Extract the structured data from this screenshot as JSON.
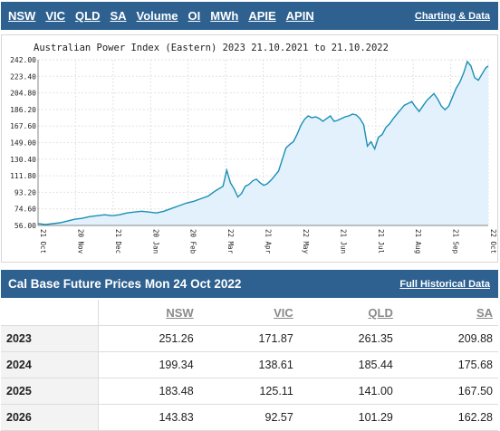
{
  "top_nav": {
    "links": [
      "NSW",
      "VIC",
      "QLD",
      "SA",
      "Volume",
      "OI",
      "MWh",
      "APIE",
      "APIN"
    ],
    "charting_link": "Charting & Data"
  },
  "chart_data": {
    "type": "area",
    "title": "Australian Power Index (Eastern) 2023 21.10.2021 to 21.10.2022",
    "y_ticks": [
      "242.00",
      "223.40",
      "204.80",
      "186.20",
      "167.60",
      "149.00",
      "130.40",
      "111.80",
      "93.20",
      "74.60",
      "56.00"
    ],
    "ylim": [
      56.0,
      242.0
    ],
    "x_ticks": [
      "21 Oct",
      "20 Nov",
      "21 Dec",
      "20 Jan",
      "20 Feb",
      "22 Mar",
      "21 Apr",
      "22 May",
      "21 Jun",
      "21 Jul",
      "21 Aug",
      "21 Sep",
      "22 Oct"
    ],
    "xlim": [
      0,
      365
    ],
    "x": [
      0,
      6,
      12,
      18,
      24,
      30,
      36,
      42,
      48,
      54,
      60,
      66,
      72,
      78,
      84,
      90,
      96,
      102,
      108,
      114,
      120,
      126,
      132,
      138,
      144,
      150,
      153,
      156,
      159,
      162,
      165,
      168,
      171,
      174,
      177,
      180,
      183,
      186,
      189,
      192,
      195,
      198,
      201,
      204,
      207,
      210,
      213,
      216,
      219,
      222,
      225,
      228,
      231,
      234,
      237,
      240,
      243,
      246,
      249,
      252,
      255,
      258,
      261,
      264,
      267,
      270,
      273,
      276,
      279,
      282,
      285,
      288,
      291,
      294,
      297,
      300,
      303,
      306,
      309,
      312,
      315,
      318,
      321,
      324,
      327,
      330,
      333,
      336,
      339,
      342,
      345,
      348,
      351,
      354,
      357,
      360,
      363,
      365
    ],
    "values": [
      58,
      57,
      58,
      59,
      61,
      63,
      64,
      66,
      67,
      68,
      67,
      68,
      70,
      71,
      72,
      71,
      70,
      72,
      75,
      78,
      81,
      83,
      86,
      89,
      95,
      100,
      118,
      104,
      97,
      88,
      92,
      100,
      102,
      106,
      108,
      104,
      101,
      103,
      107,
      112,
      117,
      130,
      143,
      147,
      150,
      158,
      168,
      175,
      179,
      177,
      178,
      176,
      173,
      176,
      179,
      173,
      174,
      176,
      178,
      179,
      181,
      180,
      176,
      169,
      145,
      150,
      142,
      155,
      158,
      166,
      170,
      176,
      181,
      186,
      191,
      193,
      195,
      189,
      184,
      190,
      196,
      200,
      204,
      198,
      190,
      186,
      190,
      200,
      210,
      217,
      227,
      240,
      235,
      222,
      219,
      226,
      233,
      235
    ]
  },
  "prices": {
    "title": "Cal Base Future Prices Mon 24 Oct 2022",
    "history_link": "Full Historical Data",
    "columns": [
      "NSW",
      "VIC",
      "QLD",
      "SA"
    ],
    "rows": [
      {
        "year": "2023",
        "values": [
          "251.26",
          "171.87",
          "261.35",
          "209.88"
        ]
      },
      {
        "year": "2024",
        "values": [
          "199.34",
          "138.61",
          "185.44",
          "175.68"
        ]
      },
      {
        "year": "2025",
        "values": [
          "183.48",
          "125.11",
          "141.00",
          "167.50"
        ]
      },
      {
        "year": "2026",
        "values": [
          "143.83",
          "92.57",
          "101.29",
          "162.28"
        ]
      }
    ]
  }
}
